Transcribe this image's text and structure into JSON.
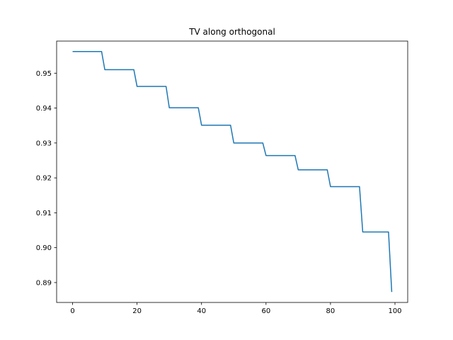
{
  "chart_data": {
    "type": "line",
    "title": "TV along orthogonal",
    "xlabel": "",
    "ylabel": "",
    "xlim": [
      -4.95,
      103.95
    ],
    "ylim": [
      0.8843,
      0.9592
    ],
    "grid": false,
    "legend": "none",
    "xticks": [
      0,
      20,
      40,
      60,
      80,
      100
    ],
    "xtick_labels": [
      "0",
      "20",
      "40",
      "60",
      "80",
      "100"
    ],
    "yticks": [
      0.89,
      0.9,
      0.91,
      0.92,
      0.93,
      0.94,
      0.95
    ],
    "ytick_labels": [
      "0.89",
      "0.90",
      "0.91",
      "0.92",
      "0.93",
      "0.94",
      "0.95"
    ],
    "series": [
      {
        "color": "#1f77b4",
        "x": [
          0,
          9,
          10,
          19,
          20,
          29,
          30,
          39,
          40,
          49,
          50,
          59,
          60,
          69,
          70,
          79,
          80,
          89,
          90,
          98,
          99
        ],
        "y": [
          0.9562,
          0.9562,
          0.951,
          0.951,
          0.9462,
          0.9462,
          0.9401,
          0.9401,
          0.9351,
          0.9351,
          0.93,
          0.93,
          0.9264,
          0.9264,
          0.9223,
          0.9223,
          0.9175,
          0.9175,
          0.9045,
          0.9045,
          0.8873
        ]
      }
    ]
  }
}
